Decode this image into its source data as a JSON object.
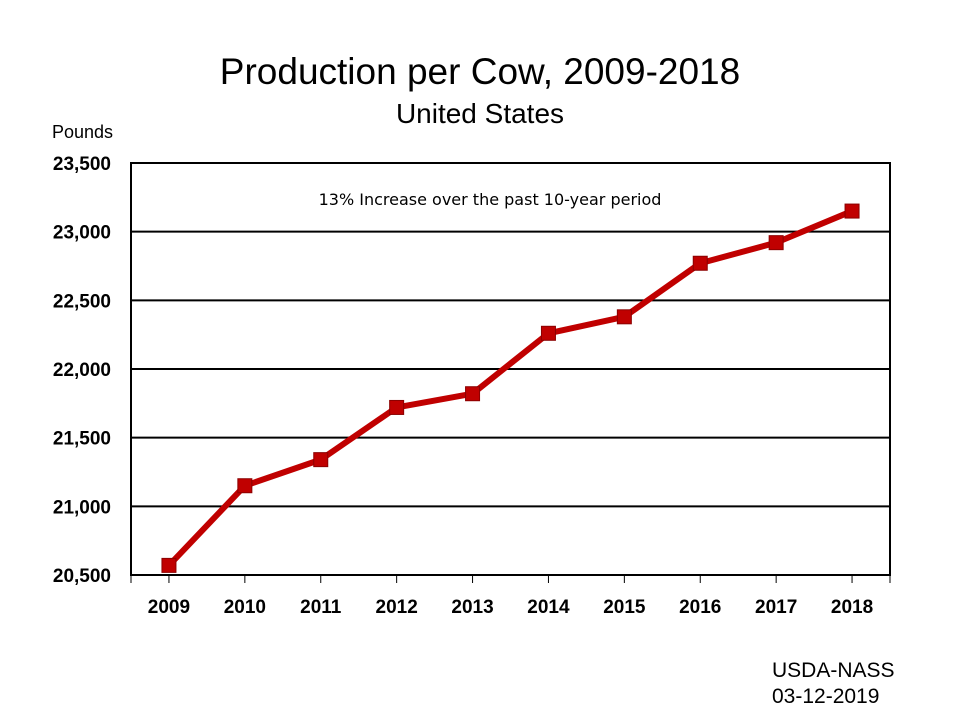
{
  "chart_data": {
    "type": "line",
    "title": "Production per Cow, 2009-2018",
    "subtitle": "United States",
    "ylabel": "Pounds",
    "xlabel": "",
    "categories": [
      "2009",
      "2010",
      "2011",
      "2012",
      "2013",
      "2014",
      "2015",
      "2016",
      "2017",
      "2018"
    ],
    "series": [
      {
        "values": [
          20570,
          21150,
          21340,
          21720,
          21820,
          22260,
          22380,
          22770,
          22920,
          23150
        ],
        "color": "#c00000",
        "marker": "square"
      }
    ],
    "ylim": [
      20500,
      23500
    ],
    "yticks": [
      20500,
      21000,
      21500,
      22000,
      22500,
      23000,
      23500
    ],
    "ytick_labels": [
      "20,500",
      "21,000",
      "21,500",
      "22,000",
      "22,500",
      "23,000",
      "23,500"
    ],
    "grid": "horizontal",
    "annotation": "13% Increase over the past 10-year period"
  },
  "source": {
    "agency": "USDA-NASS",
    "date": "03-12-2019"
  }
}
